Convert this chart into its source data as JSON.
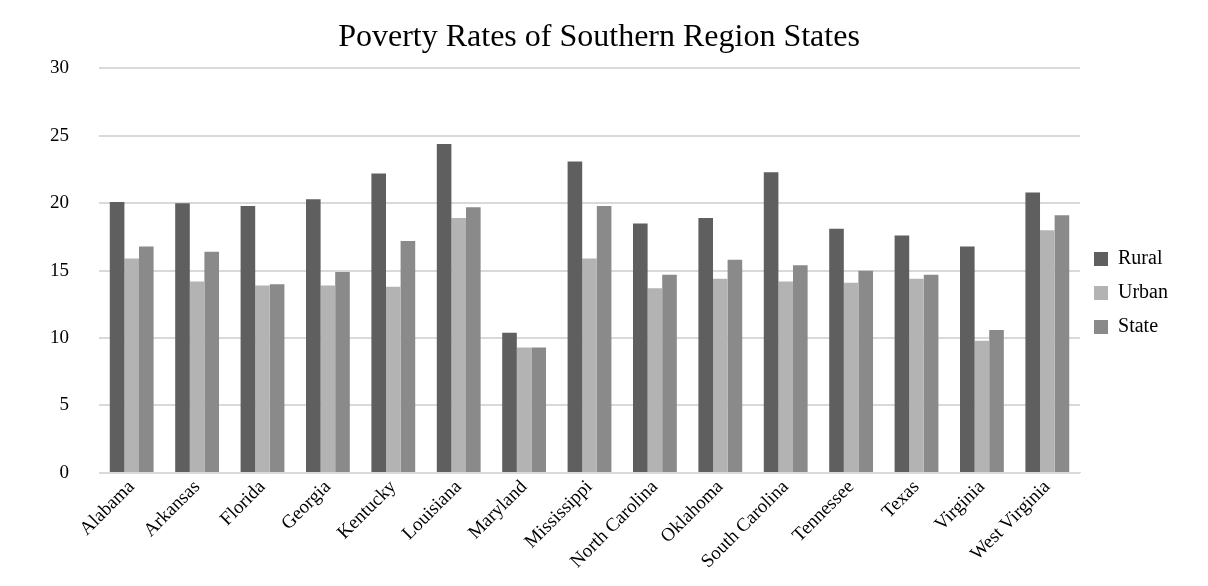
{
  "chart_data": {
    "type": "bar",
    "title": "Poverty Rates of Southern Region States",
    "categories": [
      "Alabama",
      "Arkansas",
      "Florida",
      "Georgia",
      "Kentucky",
      "Louisiana",
      "Maryland",
      "Mississippi",
      "North Carolina",
      "Oklahoma",
      "South Carolina",
      "Tennessee",
      "Texas",
      "Virginia",
      "West Virginia"
    ],
    "series": [
      {
        "name": "Rural",
        "color": "#5f5f5f",
        "values": [
          20.1,
          20.0,
          19.8,
          20.3,
          22.2,
          24.4,
          10.4,
          23.1,
          18.5,
          18.9,
          22.3,
          18.1,
          17.6,
          16.8,
          20.8
        ]
      },
      {
        "name": "Urban",
        "color": "#b3b3b3",
        "values": [
          15.9,
          14.2,
          13.9,
          13.9,
          13.8,
          18.9,
          9.3,
          15.9,
          13.7,
          14.4,
          14.2,
          14.1,
          14.4,
          9.8,
          18.0
        ]
      },
      {
        "name": "State",
        "color": "#8a8a8a",
        "values": [
          16.8,
          16.4,
          14.0,
          14.9,
          17.2,
          19.7,
          9.3,
          19.8,
          14.7,
          15.8,
          15.4,
          15.0,
          14.7,
          10.6,
          19.1
        ]
      }
    ],
    "ylim": [
      0,
      30
    ],
    "yticks": [
      0,
      5,
      10,
      15,
      20,
      25,
      30
    ],
    "grid": "y",
    "legend": "right"
  }
}
